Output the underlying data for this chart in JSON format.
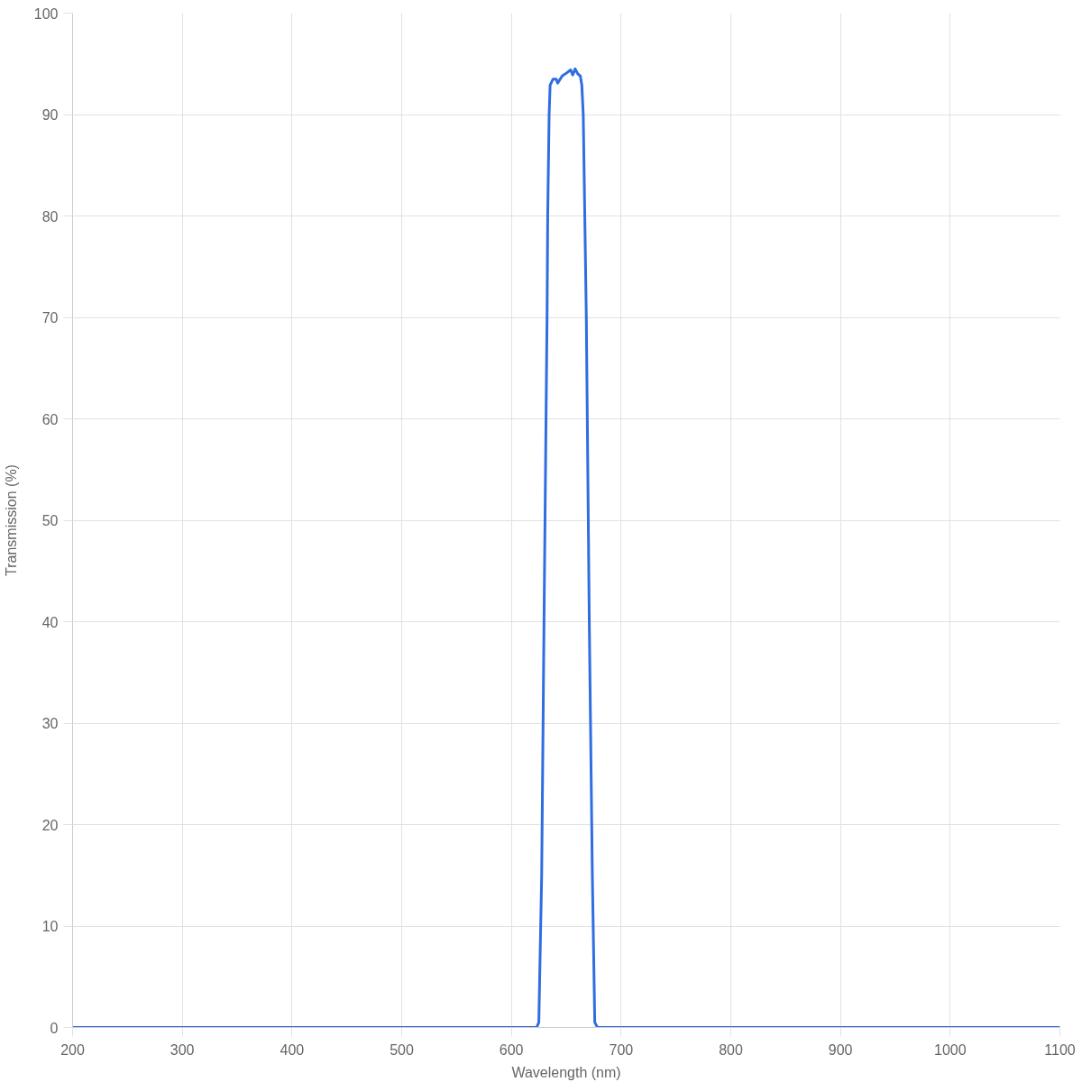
{
  "chart_data": {
    "type": "line",
    "xlabel": "Wavelength (nm)",
    "ylabel": "Transmission (%)",
    "x": [
      200,
      623,
      625,
      627.6,
      630,
      632.5,
      633.1,
      634.4,
      635.3,
      638,
      640.8,
      642.2,
      646.3,
      650.4,
      654,
      655.9,
      658.1,
      660.6,
      662.8,
      664.2,
      665.5,
      666.9,
      668.3,
      671,
      673.8,
      676,
      678.5,
      1100
    ],
    "series": [
      {
        "color": "#2f6de1",
        "values": [
          0,
          0,
          0.5,
          15,
          43,
          70,
          80,
          90,
          92.9,
          93.5,
          93.5,
          93.1,
          93.8,
          94.1,
          94.4,
          93.9,
          94.5,
          94.0,
          93.8,
          92.9,
          90,
          80,
          70,
          40,
          15,
          0.5,
          0,
          0
        ]
      }
    ],
    "xlim": [
      200,
      1100
    ],
    "ylim": [
      0,
      100
    ],
    "xticks": [
      200,
      300,
      400,
      500,
      600,
      700,
      800,
      900,
      1000,
      1100
    ],
    "yticks": [
      0,
      10,
      20,
      30,
      40,
      50,
      60,
      70,
      80,
      90,
      100
    ],
    "grid": true
  }
}
